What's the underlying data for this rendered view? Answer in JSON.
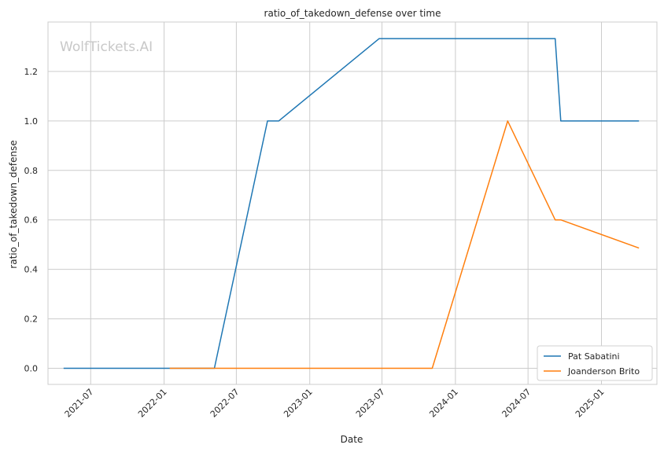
{
  "chart_data": {
    "type": "line",
    "title": "ratio_of_takedown_defense over time",
    "xlabel": "Date",
    "ylabel": "ratio_of_takedown_defense",
    "watermark": "WolfTickets.AI",
    "x_tick_labels": [
      "2021-07",
      "2022-01",
      "2022-07",
      "2023-01",
      "2023-07",
      "2024-01",
      "2024-07",
      "2025-01"
    ],
    "y_tick_labels": [
      "0.0",
      "0.2",
      "0.4",
      "0.6",
      "0.8",
      "1.0",
      "1.2"
    ],
    "xlim": [
      "2021-03-16",
      "2025-05-20"
    ],
    "ylim": [
      -0.065,
      1.4
    ],
    "grid": true,
    "legend_position": "lower-right",
    "series": [
      {
        "name": "Pat Sabatini",
        "color": "#1f77b4",
        "x": [
          "2021-04-24",
          "2022-05-07",
          "2022-09-17",
          "2022-10-15",
          "2023-06-24",
          "2024-09-07",
          "2024-09-21",
          "2025-04-05"
        ],
        "y": [
          0.0,
          0.0,
          1.0,
          1.0,
          1.333,
          1.333,
          1.0,
          1.0
        ]
      },
      {
        "name": "Joanderson Brito",
        "color": "#ff7f0e",
        "x": [
          "2022-01-15",
          "2023-11-04",
          "2024-05-11",
          "2024-09-07",
          "2024-09-21",
          "2025-04-05"
        ],
        "y": [
          0.0,
          0.0,
          1.0,
          0.6,
          0.6,
          0.486
        ]
      }
    ]
  }
}
